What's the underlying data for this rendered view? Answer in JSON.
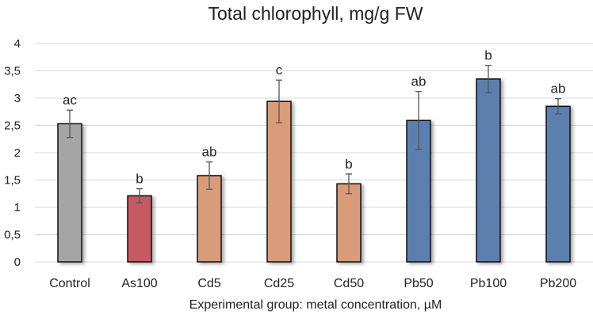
{
  "chart_data": {
    "type": "bar",
    "title": "Total chlorophyll, mg/g FW",
    "xlabel": "Experimental group: metal concentration, µM",
    "ylabel": "",
    "ylim": [
      0,
      4
    ],
    "yticks": [
      "0",
      "0,5",
      "1",
      "1,5",
      "2",
      "2,5",
      "3",
      "3,5",
      "4"
    ],
    "ytick_values": [
      0,
      0.5,
      1,
      1.5,
      2,
      2.5,
      3,
      3.5,
      4
    ],
    "grid": true,
    "categories": [
      "Control",
      "As100",
      "Cd5",
      "Cd25",
      "Cd50",
      "Pb50",
      "Pb100",
      "Pb200"
    ],
    "values": [
      2.53,
      1.21,
      1.58,
      2.94,
      1.43,
      2.59,
      3.35,
      2.85
    ],
    "errors": [
      0.25,
      0.13,
      0.25,
      0.39,
      0.18,
      0.53,
      0.25,
      0.14
    ],
    "annotations": [
      "ac",
      "b",
      "ab",
      "c",
      "b",
      "ab",
      "b",
      "ab"
    ],
    "colors": [
      "#a5a5a5",
      "#c55a64",
      "#d99c7a",
      "#d99c7a",
      "#d99c7a",
      "#5b7fae",
      "#5b7fae",
      "#5b7fae"
    ]
  }
}
